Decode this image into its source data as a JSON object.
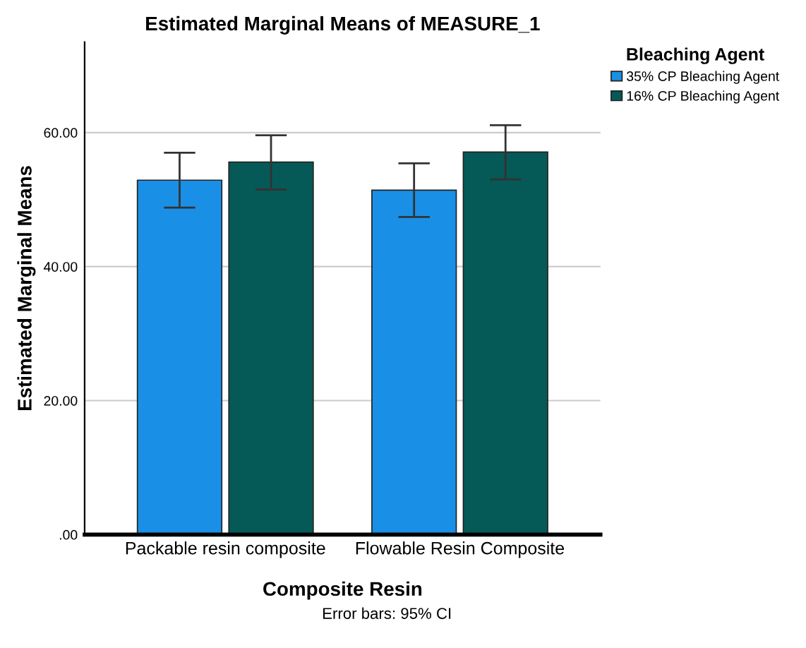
{
  "chart_data": {
    "type": "bar",
    "title": "Estimated Marginal Means of MEASURE_1",
    "xlabel": "Composite Resin",
    "ylabel": "Estimated Marginal Means",
    "legend_title": "Bleaching Agent",
    "categories": [
      "Packable resin composite",
      "Flowable Resin Composite"
    ],
    "series": [
      {
        "name": "35% CP Bleaching Agent",
        "color": "#1a8fe6",
        "values": [
          52.9,
          51.4
        ],
        "errors": [
          [
            48.8,
            57.0
          ],
          [
            47.4,
            55.4
          ]
        ]
      },
      {
        "name": "16% CP Bleaching Agent",
        "color": "#055a57",
        "values": [
          55.6,
          57.1
        ],
        "errors": [
          [
            51.5,
            59.6
          ],
          [
            53.0,
            61.1
          ]
        ]
      }
    ],
    "ylim": [
      0,
      73.5
    ],
    "yticks": [
      {
        "value": 0,
        "label": ".00"
      },
      {
        "value": 20,
        "label": "20.00"
      },
      {
        "value": 40,
        "label": "40.00"
      },
      {
        "value": 60,
        "label": "60.00"
      }
    ],
    "grid": "y",
    "legend": "top right",
    "annotations": [
      "Error bars: 95% CI"
    ]
  }
}
